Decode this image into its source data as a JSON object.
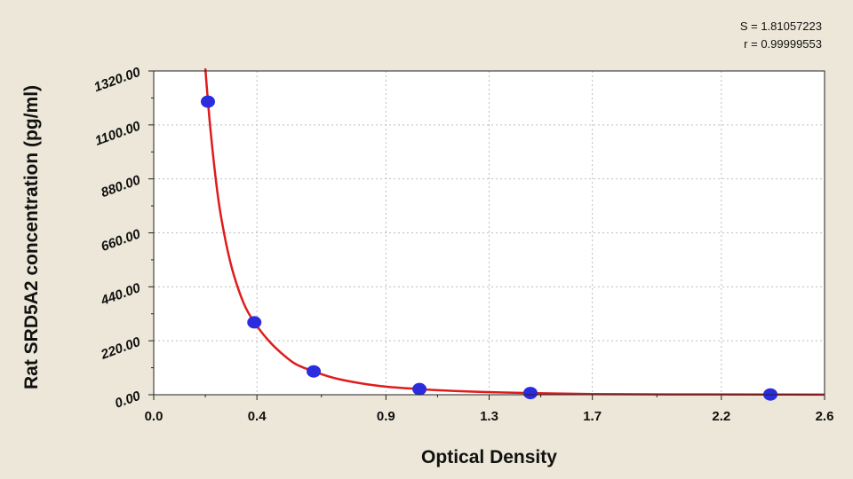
{
  "stats": {
    "s_text": "S = 1.81057223",
    "r_text": "r = 0.99999553"
  },
  "colors": {
    "background": "#ECE7D8",
    "plot_background": "#FFFFFF",
    "grid": "#BDBDBD",
    "curve": "#E01B1B",
    "points": "#2B2BE0"
  },
  "chart_data": {
    "type": "scatter",
    "title": "",
    "xlabel": "Optical Density",
    "ylabel": "Rat SRD5A2 concentration (pg/ml)",
    "xlim": [
      0.0,
      2.6
    ],
    "ylim": [
      0.0,
      1320.0
    ],
    "x_ticks": [
      0.0,
      0.4,
      0.9,
      1.3,
      1.7,
      2.2,
      2.6
    ],
    "x_tick_labels": [
      "0.0",
      "0.4",
      "0.9",
      "1.3",
      "1.7",
      "2.2",
      "2.6"
    ],
    "y_ticks": [
      0,
      220,
      440,
      660,
      880,
      1100,
      1320
    ],
    "y_tick_labels": [
      "0.00",
      "220.00",
      "440.00",
      "660.00",
      "880.00",
      "1100.00",
      "1320.00"
    ],
    "grid": true,
    "series": [
      {
        "kind": "points",
        "x": [
          0.21,
          0.39,
          0.62,
          1.03,
          1.46,
          2.39
        ],
        "y": [
          1195,
          295,
          95,
          23,
          7,
          1
        ]
      },
      {
        "kind": "fitted_curve",
        "x": [
          0.2,
          0.22,
          0.25,
          0.28,
          0.31,
          0.35,
          0.39,
          0.45,
          0.5,
          0.55,
          0.62,
          0.7,
          0.8,
          0.9,
          1.03,
          1.2,
          1.46,
          1.7,
          2.0,
          2.39,
          2.6
        ],
        "y": [
          1330,
          1080,
          800,
          620,
          490,
          370,
          295,
          215,
          165,
          125,
          95,
          68,
          47,
          33,
          23,
          14,
          7,
          3,
          1.5,
          1,
          0.5
        ]
      }
    ]
  }
}
